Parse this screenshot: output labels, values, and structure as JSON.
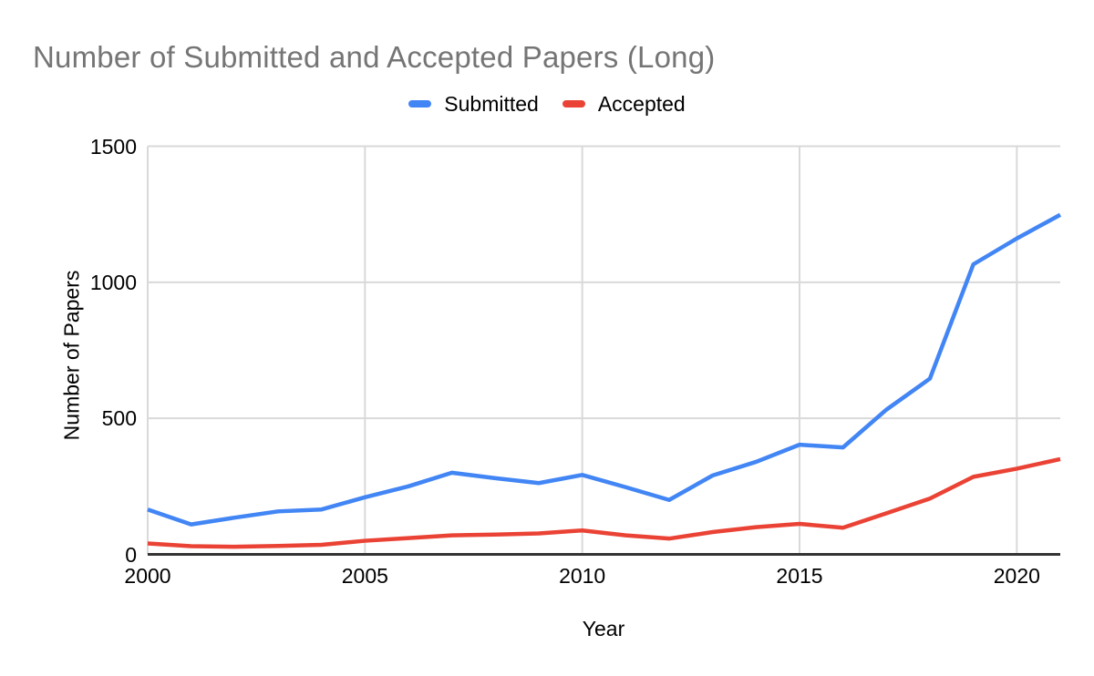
{
  "chart": {
    "title": "Number of Submitted and Accepted Papers (Long)"
  },
  "style": {
    "title_color": "#757575",
    "grid_color": "#d9d9d9",
    "axis_color": "#333333",
    "tick_color": "#000000",
    "background": "#ffffff",
    "submitted_color": "#4285f4",
    "accepted_color": "#ea4335"
  },
  "chart_data": {
    "type": "line",
    "title": "Number of Submitted and Accepted Papers (Long)",
    "xlabel": "Year",
    "ylabel": "Number of Papers",
    "x": [
      2000,
      2001,
      2002,
      2003,
      2004,
      2005,
      2006,
      2007,
      2008,
      2009,
      2010,
      2011,
      2012,
      2013,
      2014,
      2015,
      2016,
      2017,
      2018,
      2019,
      2020,
      2021
    ],
    "series": [
      {
        "name": "Submitted",
        "color": "#4285f4",
        "values": [
          165,
          110,
          135,
          158,
          165,
          210,
          250,
          300,
          280,
          262,
          292,
          247,
          200,
          290,
          340,
          403,
          393,
          532,
          646,
          1066,
          1161,
          1248
        ]
      },
      {
        "name": "Accepted",
        "color": "#ea4335",
        "values": [
          40,
          30,
          28,
          31,
          35,
          50,
          60,
          70,
          73,
          77,
          88,
          70,
          58,
          82,
          100,
          112,
          98,
          151,
          205,
          285,
          315,
          350
        ]
      }
    ],
    "ylim": [
      0,
      1500
    ],
    "yticks": [
      0,
      500,
      1000,
      1500
    ],
    "xticks": [
      2000,
      2005,
      2010,
      2015,
      2020
    ],
    "grid": true,
    "legend_position": "top",
    "line_width": 4.5
  }
}
